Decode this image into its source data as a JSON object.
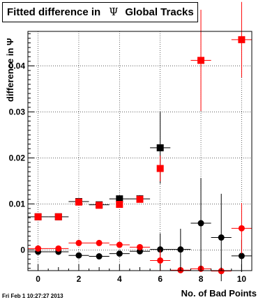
{
  "title": {
    "prefix": "Fitted difference in",
    "symbol": "Ψ",
    "suffix": "Global Tracks"
  },
  "timestamp": "Fri Feb  1 10:27:27 2013",
  "chart_data": {
    "type": "scatter",
    "title": "Fitted difference in Ψ Global Tracks",
    "xlabel": "No. of Bad Points",
    "ylabel": "difference in Ψ",
    "xlim": [
      -0.5,
      10.5
    ],
    "ylim": [
      -0.0045,
      0.0475
    ],
    "xticks": [
      0,
      2,
      4,
      6,
      8,
      10
    ],
    "yticks": [
      0,
      0.01,
      0.02,
      0.03,
      0.04
    ],
    "ytick_labels": [
      "0",
      "0.01",
      "0.02",
      "0.03",
      "0.04"
    ],
    "grid": true,
    "series": [
      {
        "marker": "square",
        "color": "#000000",
        "points": [
          {
            "x": 0,
            "y": 0.0072,
            "xerr": 0.5,
            "yerr": 0
          },
          {
            "x": 1,
            "y": 0.0072,
            "xerr": 0.5,
            "yerr": 0
          },
          {
            "x": 2,
            "y": 0.0105,
            "xerr": 0.5,
            "yerr": 0
          },
          {
            "x": 3,
            "y": 0.0098,
            "xerr": 0.5,
            "yerr": 0
          },
          {
            "x": 4,
            "y": 0.0111,
            "xerr": 0.5,
            "yerr": 0
          },
          {
            "x": 5,
            "y": 0.0111,
            "xerr": 0.5,
            "yerr": 0.0008
          },
          {
            "x": 6,
            "y": 0.0222,
            "xerr": 0.5,
            "yerr": 0.0078
          }
        ]
      },
      {
        "marker": "square",
        "color": "#ff0000",
        "points": [
          {
            "x": 0,
            "y": 0.0072,
            "xerr": 0,
            "yerr": 0
          },
          {
            "x": 1,
            "y": 0.0072,
            "xerr": 0,
            "yerr": 0
          },
          {
            "x": 2,
            "y": 0.0104,
            "xerr": 0,
            "yerr": 0
          },
          {
            "x": 3,
            "y": 0.0097,
            "xerr": 0,
            "yerr": 0
          },
          {
            "x": 4,
            "y": 0.0099,
            "xerr": 0,
            "yerr": 0
          },
          {
            "x": 5,
            "y": 0.011,
            "xerr": 0,
            "yerr": 0
          },
          {
            "x": 6,
            "y": 0.0177,
            "xerr": 0,
            "yerr": 0.0028
          },
          {
            "x": 8,
            "y": 0.0412,
            "xerr": 0.5,
            "yerr": 0.011
          },
          {
            "x": 10,
            "y": 0.0457,
            "xerr": 0.5,
            "yerr": 0.0082
          }
        ]
      },
      {
        "marker": "circle",
        "color": "#000000",
        "points": [
          {
            "x": 0,
            "y": -0.0004,
            "xerr": 0.5,
            "yerr": 0
          },
          {
            "x": 1,
            "y": -0.0004,
            "xerr": 0.5,
            "yerr": 0
          },
          {
            "x": 2,
            "y": -0.0012,
            "xerr": 0.5,
            "yerr": 0
          },
          {
            "x": 3,
            "y": -0.0014,
            "xerr": 0.5,
            "yerr": 0
          },
          {
            "x": 4,
            "y": -0.0008,
            "xerr": 0.5,
            "yerr": 0
          },
          {
            "x": 5,
            "y": -0.0003,
            "xerr": 0.5,
            "yerr": 0
          },
          {
            "x": 6,
            "y": 0.0001,
            "xerr": 0.5,
            "yerr": 0.0035
          },
          {
            "x": 7,
            "y": 0.0001,
            "xerr": 0.5,
            "yerr": 0.0045
          },
          {
            "x": 8,
            "y": 0.0058,
            "xerr": 0.5,
            "yerr": 0.0098
          },
          {
            "x": 9,
            "y": 0.0027,
            "xerr": 0.5,
            "yerr": 0.0095
          },
          {
            "x": 10,
            "y": -0.0013,
            "xerr": 0.5,
            "yerr": 0.0035
          }
        ]
      },
      {
        "marker": "circle",
        "color": "#ff0000",
        "points": [
          {
            "x": 0,
            "y": 0.0003,
            "xerr": 0.5,
            "yerr": 0
          },
          {
            "x": 1,
            "y": 0.0003,
            "xerr": 0.5,
            "yerr": 0
          },
          {
            "x": 2,
            "y": 0.0015,
            "xerr": 0.5,
            "yerr": 0
          },
          {
            "x": 3,
            "y": 0.0015,
            "xerr": 0.5,
            "yerr": 0
          },
          {
            "x": 4,
            "y": 0.0011,
            "xerr": 0.5,
            "yerr": 0
          },
          {
            "x": 5,
            "y": 0.0006,
            "xerr": 0.5,
            "yerr": 0
          },
          {
            "x": 6,
            "y": -0.0023,
            "xerr": 0.5,
            "yerr": 0.0023
          },
          {
            "x": 7,
            "y": -0.0044,
            "xerr": 0.5,
            "yerr": 0
          },
          {
            "x": 8,
            "y": -0.0041,
            "xerr": 0.5,
            "yerr": 0
          },
          {
            "x": 9,
            "y": -0.0046,
            "xerr": 0.5,
            "yerr": 0
          },
          {
            "x": 10,
            "y": 0.0047,
            "xerr": 0.5,
            "yerr": 0.0055
          }
        ]
      }
    ]
  }
}
